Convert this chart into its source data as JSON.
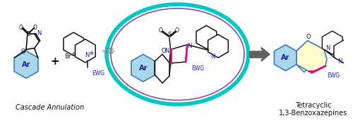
{
  "bg_color": "#ffffff",
  "figsize": [
    5.0,
    1.75
  ],
  "dpi": 100,
  "label_cascade": "Cascade Annulation",
  "label_tetracyclic_1": "Tetracyclic",
  "label_tetracyclic_2": "1,3-Benzoxazepines",
  "teal": "#00c8c8",
  "purple": "#7b52ab",
  "light_blue": "#a8d8ea",
  "light_blue_edge": "#3a7bbf",
  "light_yellow": "#ffffcc",
  "blue_dark": "#1a1aaa",
  "pink": "#e8007a",
  "black": "#111111",
  "gray": "#888888",
  "dark_gray": "#606060"
}
